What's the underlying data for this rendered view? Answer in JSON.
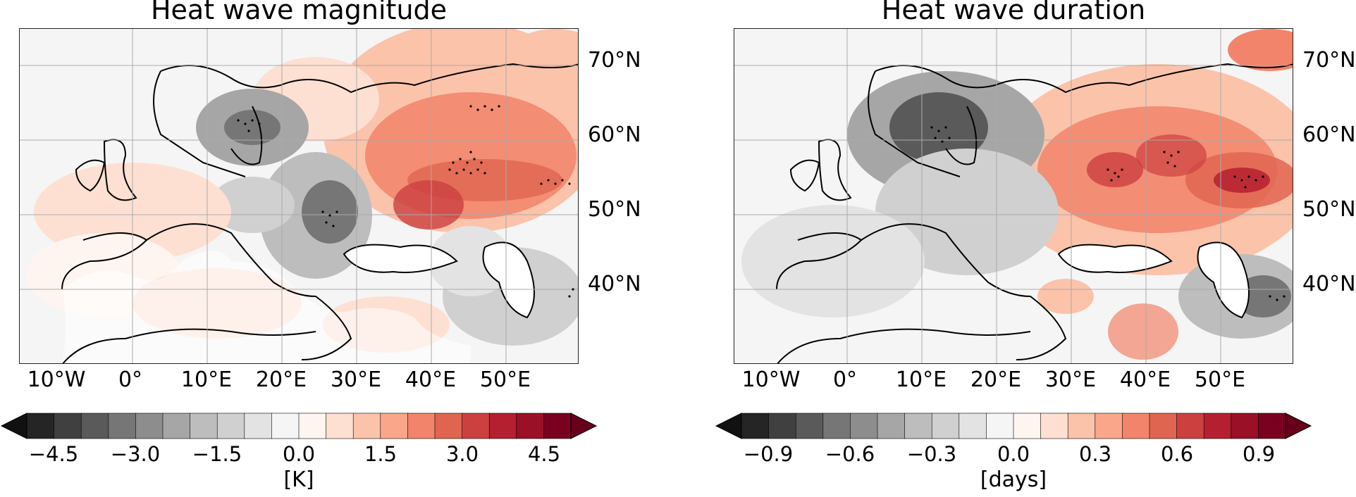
{
  "panels": [
    {
      "title": "Heat wave magnitude",
      "lat_labels": [
        "70°N",
        "60°N",
        "50°N",
        "40°N"
      ],
      "lon_labels": [
        "10°W",
        "0°",
        "10°E",
        "20°E",
        "30°E",
        "40°E",
        "50°E"
      ],
      "colorbar": {
        "ticks": [
          "−4.5",
          "−3.0",
          "−1.5",
          "0.0",
          "1.5",
          "3.0",
          "4.5"
        ],
        "label": "[K]",
        "range": [
          -5.0,
          5.0
        ]
      }
    },
    {
      "title": "Heat wave duration",
      "lat_labels": [
        "70°N",
        "60°N",
        "50°N",
        "40°N"
      ],
      "lon_labels": [
        "10°W",
        "0°",
        "10°E",
        "20°E",
        "30°E",
        "40°E",
        "50°E"
      ],
      "colorbar": {
        "ticks": [
          "−0.9",
          "−0.6",
          "−0.3",
          "0.0",
          "0.3",
          "0.6",
          "0.9"
        ],
        "label": "[days]",
        "range": [
          -1.0,
          1.0
        ]
      }
    }
  ],
  "colormap": [
    "#252525",
    "#404040",
    "#5a5a5a",
    "#767676",
    "#8d8d8d",
    "#a6a6a6",
    "#bdbdbd",
    "#d0d0d0",
    "#e3e3e3",
    "#f5f5f5",
    "#fff5f0",
    "#fde0d2",
    "#fbc3aa",
    "#f9a68a",
    "#f1846a",
    "#e06550",
    "#cc4040",
    "#b52030",
    "#9a1026",
    "#7a0020"
  ]
}
